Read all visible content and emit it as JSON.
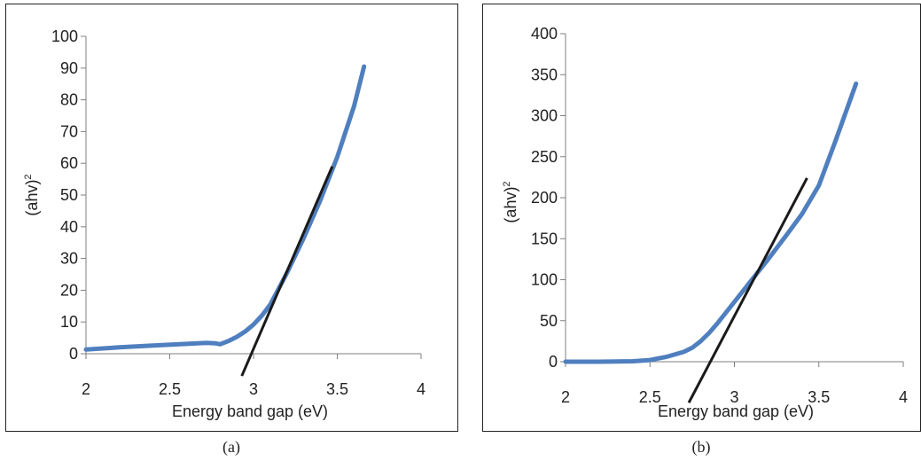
{
  "chart_data": [
    {
      "type": "line",
      "caption": "(a)",
      "xlabel": "Energy band gap (eV)",
      "ylabel_base": "(ahv)",
      "ylabel_sup": "2",
      "xlim": [
        2,
        4
      ],
      "ylim": [
        0,
        100
      ],
      "xticks": [
        2,
        2.5,
        3,
        3.5,
        4
      ],
      "xtick_labels": [
        "2",
        "2.5",
        "3",
        "3.5",
        "4"
      ],
      "yticks": [
        0,
        10,
        20,
        30,
        40,
        50,
        60,
        70,
        80,
        90,
        100
      ],
      "ytick_labels": [
        "0",
        "10",
        "20",
        "30",
        "40",
        "50",
        "60",
        "70",
        "80",
        "90",
        "100"
      ],
      "grid": false,
      "series": [
        {
          "color": "#4f7fbf",
          "x": [
            2.0,
            2.2,
            2.4,
            2.6,
            2.72,
            2.77,
            2.8,
            2.85,
            2.9,
            2.95,
            3.0,
            3.05,
            3.1,
            3.2,
            3.3,
            3.4,
            3.5,
            3.6,
            3.66
          ],
          "y": [
            1.3,
            2.0,
            2.6,
            3.1,
            3.4,
            3.3,
            3.0,
            4.0,
            5.3,
            7.0,
            9.2,
            12.0,
            15.5,
            25.5,
            36.5,
            48.5,
            62.0,
            78.0,
            90.5
          ]
        }
      ],
      "tangent_line": {
        "color": "#1a1a1a",
        "x": [
          2.93,
          3.47
        ],
        "y": [
          -7,
          59
        ]
      }
    },
    {
      "type": "line",
      "caption": "(b)",
      "xlabel": "Energy band gap (eV)",
      "ylabel_base": "(ahv)",
      "ylabel_sup": "2",
      "xlim": [
        2,
        4
      ],
      "ylim": [
        0,
        400
      ],
      "xticks": [
        2,
        2.5,
        3,
        3.5,
        4
      ],
      "xtick_labels": [
        "2",
        "2.5",
        "3",
        "3.5",
        "4"
      ],
      "yticks": [
        0,
        50,
        100,
        150,
        200,
        250,
        300,
        350,
        400
      ],
      "ytick_labels": [
        "0",
        "50",
        "100",
        "150",
        "200",
        "250",
        "300",
        "350",
        "400"
      ],
      "grid": false,
      "series": [
        {
          "color": "#4f7fbf",
          "x": [
            2.0,
            2.2,
            2.4,
            2.5,
            2.6,
            2.7,
            2.75,
            2.8,
            2.85,
            2.9,
            2.95,
            3.0,
            3.1,
            3.2,
            3.3,
            3.4,
            3.5,
            3.6,
            3.72
          ],
          "y": [
            0,
            0,
            0.5,
            2,
            6,
            12,
            17,
            25,
            35,
            47,
            60,
            73,
            99,
            125,
            152,
            180,
            215,
            270,
            339
          ]
        }
      ],
      "tangent_line": {
        "color": "#1a1a1a",
        "x": [
          2.73,
          3.43
        ],
        "y": [
          -50,
          224
        ]
      }
    }
  ]
}
